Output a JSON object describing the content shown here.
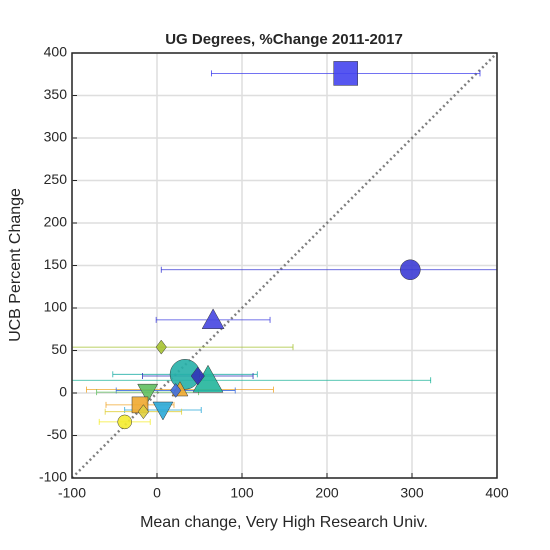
{
  "chart_data": {
    "type": "scatter",
    "title": "UG Degrees, %Change 2011-2017",
    "xlabel": "Mean change, Very High Research Univ.",
    "ylabel": "UCB Percent Change",
    "xlim": [
      -100,
      400
    ],
    "ylim": [
      -100,
      400
    ],
    "xticks": [
      -100,
      0,
      100,
      200,
      300,
      400
    ],
    "yticks": [
      -100,
      -50,
      0,
      50,
      100,
      150,
      200,
      250,
      300,
      350,
      400
    ],
    "grid": true,
    "reference_line": "y=x",
    "points": [
      {
        "x": 222,
        "y": 376,
        "xerr": 158,
        "marker": "square",
        "color": "#4444ee",
        "size": 24
      },
      {
        "x": 298,
        "y": 145,
        "xerr": 293,
        "marker": "circle",
        "color": "#3c3cd4",
        "size": 20
      },
      {
        "x": 66,
        "y": 86,
        "xerr": 67,
        "marker": "triangle-up",
        "color": "#4646e0",
        "size": 22
      },
      {
        "x": 5,
        "y": 54,
        "xerr": 155,
        "marker": "diamond",
        "color": "#a6c232",
        "size": 14
      },
      {
        "x": 60,
        "y": 15,
        "xerr": 262,
        "marker": "triangle-up",
        "color": "#22b59b",
        "size": 30
      },
      {
        "x": 33,
        "y": 22,
        "xerr": 85,
        "marker": "circle",
        "color": "#26b0a8",
        "size": 30
      },
      {
        "x": 48,
        "y": 20,
        "xerr": 65,
        "marker": "diamond",
        "color": "#3232b8",
        "size": 18
      },
      {
        "x": 27,
        "y": 4,
        "xerr": 110,
        "marker": "triangle-up",
        "color": "#f0a830",
        "size": 16
      },
      {
        "x": 22,
        "y": 3,
        "xerr": 70,
        "marker": "diamond",
        "color": "#4070e0",
        "size": 14
      },
      {
        "x": -11,
        "y": 1,
        "xerr": 60,
        "marker": "triangle-down",
        "color": "#60c060",
        "size": 20
      },
      {
        "x": 7,
        "y": -20,
        "xerr": 45,
        "marker": "triangle-down",
        "color": "#2aa8d8",
        "size": 20
      },
      {
        "x": -20,
        "y": -14,
        "xerr": 40,
        "marker": "square",
        "color": "#f0a830",
        "size": 16
      },
      {
        "x": -16,
        "y": -22,
        "xerr": 45,
        "marker": "diamond",
        "color": "#e0d040",
        "size": 14
      },
      {
        "x": -38,
        "y": -34,
        "xerr": 30,
        "marker": "circle",
        "color": "#f4ec30",
        "size": 14
      }
    ]
  }
}
